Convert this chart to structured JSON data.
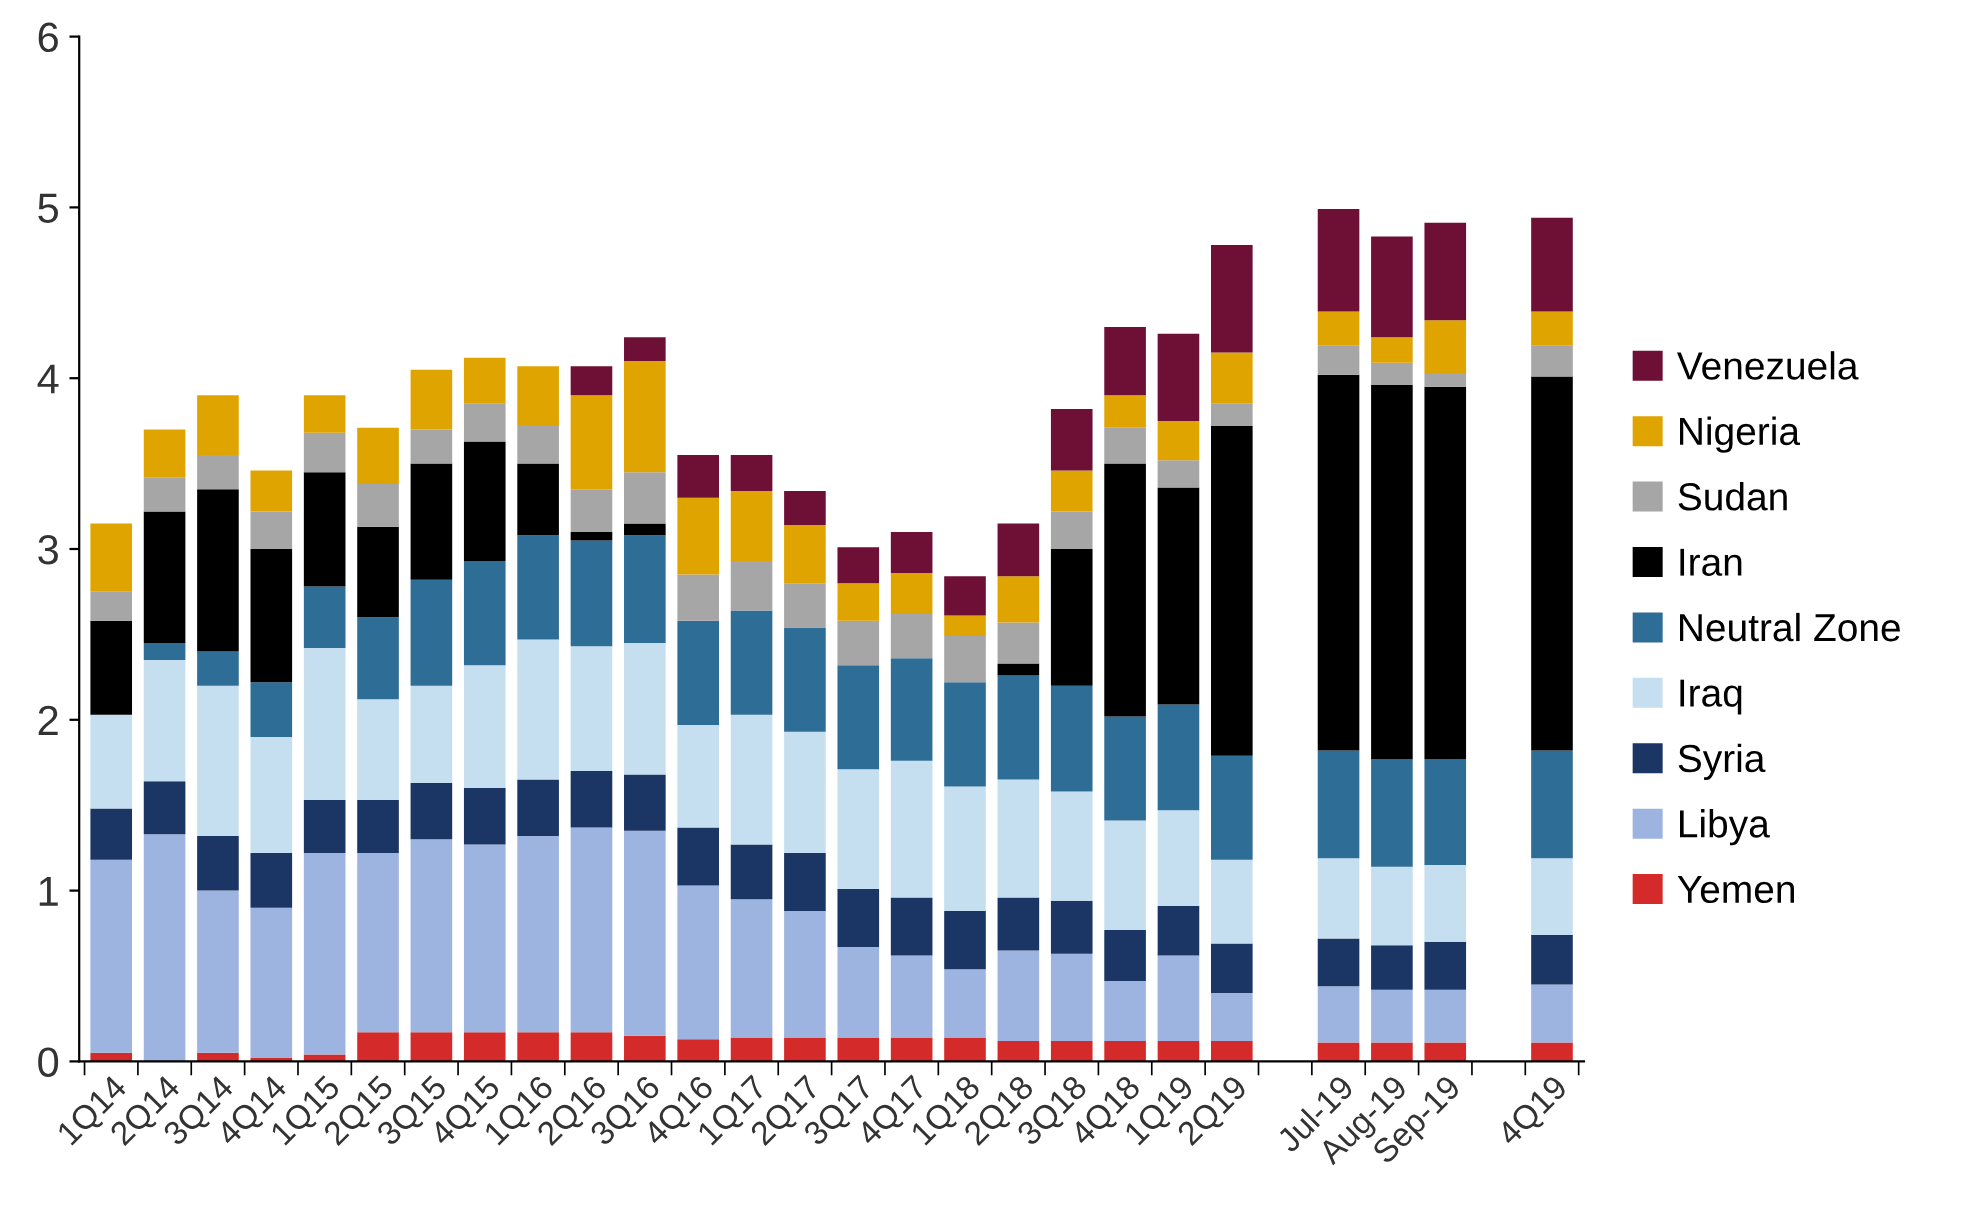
{
  "chart_data": {
    "type": "bar",
    "stacked": true,
    "categories": [
      "1Q14",
      "2Q14",
      "3Q14",
      "4Q14",
      "1Q15",
      "2Q15",
      "3Q15",
      "4Q15",
      "1Q16",
      "2Q16",
      "3Q16",
      "4Q16",
      "1Q17",
      "2Q17",
      "3Q17",
      "4Q17",
      "1Q18",
      "2Q18",
      "3Q18",
      "4Q18",
      "1Q19",
      "2Q19",
      null,
      "Jul-19",
      "Aug-19",
      "Sep-19",
      null,
      "4Q19"
    ],
    "series": [
      {
        "name": "Yemen",
        "color": "#d42a2a",
        "values": [
          0.05,
          0,
          0.05,
          0.02,
          0.04,
          0.17,
          0.17,
          0.17,
          0.17,
          0.17,
          0.15,
          0.13,
          0.14,
          0.14,
          0.14,
          0.14,
          0.14,
          0.12,
          0.12,
          0.12,
          0.12,
          0.12,
          null,
          0.11,
          0.11,
          0.11,
          null,
          0.11
        ]
      },
      {
        "name": "Libya",
        "color": "#9db3e0",
        "values": [
          1.13,
          1.33,
          0.95,
          0.88,
          1.18,
          1.05,
          1.13,
          1.1,
          1.15,
          1.2,
          1.2,
          0.9,
          0.81,
          0.74,
          0.53,
          0.48,
          0.4,
          0.53,
          0.51,
          0.35,
          0.5,
          0.28,
          null,
          0.33,
          0.31,
          0.31,
          null,
          0.34
        ]
      },
      {
        "name": "Syria",
        "color": "#1b3565",
        "values": [
          0.3,
          0.31,
          0.32,
          0.32,
          0.31,
          0.31,
          0.33,
          0.33,
          0.33,
          0.33,
          0.33,
          0.34,
          0.32,
          0.34,
          0.34,
          0.34,
          0.34,
          0.31,
          0.31,
          0.3,
          0.29,
          0.29,
          null,
          0.28,
          0.26,
          0.28,
          null,
          0.29
        ]
      },
      {
        "name": "Iraq",
        "color": "#c5dff0",
        "values": [
          0.55,
          0.71,
          0.88,
          0.68,
          0.89,
          0.59,
          0.57,
          0.72,
          0.82,
          0.73,
          0.77,
          0.6,
          0.76,
          0.71,
          0.7,
          0.8,
          0.73,
          0.69,
          0.64,
          0.64,
          0.56,
          0.49,
          null,
          0.47,
          0.46,
          0.45,
          null,
          0.45
        ]
      },
      {
        "name": "Neutral Zone",
        "color": "#2e6d96",
        "values": [
          0,
          0.1,
          0.2,
          0.32,
          0.36,
          0.48,
          0.62,
          0.61,
          0.61,
          0.62,
          0.63,
          0.61,
          0.61,
          0.61,
          0.61,
          0.6,
          0.61,
          0.61,
          0.62,
          0.61,
          0.62,
          0.61,
          null,
          0.63,
          0.63,
          0.62,
          null,
          0.63
        ]
      },
      {
        "name": "Iran",
        "color": "#000000",
        "values": [
          0.55,
          0.77,
          0.95,
          0.78,
          0.67,
          0.53,
          0.68,
          0.7,
          0.42,
          0.05,
          0.07,
          0,
          0,
          0,
          0,
          0,
          0,
          0.07,
          0.8,
          1.48,
          1.27,
          1.93,
          null,
          2.2,
          2.19,
          2.18,
          null,
          2.19
        ]
      },
      {
        "name": "Sudan",
        "color": "#a6a6a6",
        "values": [
          0.17,
          0.2,
          0.2,
          0.22,
          0.23,
          0.25,
          0.2,
          0.22,
          0.22,
          0.25,
          0.3,
          0.27,
          0.29,
          0.26,
          0.26,
          0.26,
          0.27,
          0.24,
          0.22,
          0.21,
          0.16,
          0.13,
          null,
          0.17,
          0.13,
          0.08,
          null,
          0.18
        ]
      },
      {
        "name": "Nigeria",
        "color": "#e0a400",
        "values": [
          0.4,
          0.28,
          0.35,
          0.24,
          0.22,
          0.33,
          0.35,
          0.27,
          0.35,
          0.55,
          0.65,
          0.45,
          0.41,
          0.34,
          0.22,
          0.24,
          0.12,
          0.27,
          0.24,
          0.19,
          0.23,
          0.3,
          null,
          0.2,
          0.15,
          0.31,
          null,
          0.2
        ]
      },
      {
        "name": "Venezuela",
        "color": "#6e0f35",
        "values": [
          0,
          0,
          0,
          0,
          0,
          0,
          0,
          0,
          0,
          0.17,
          0.14,
          0.25,
          0.21,
          0.2,
          0.21,
          0.24,
          0.23,
          0.31,
          0.36,
          0.4,
          0.51,
          0.63,
          null,
          0.6,
          0.59,
          0.57,
          null,
          0.55
        ]
      }
    ],
    "ylim": [
      0,
      6
    ],
    "yticks": [
      0,
      1,
      2,
      3,
      4,
      5,
      6
    ],
    "grid": false,
    "legend": "right"
  }
}
